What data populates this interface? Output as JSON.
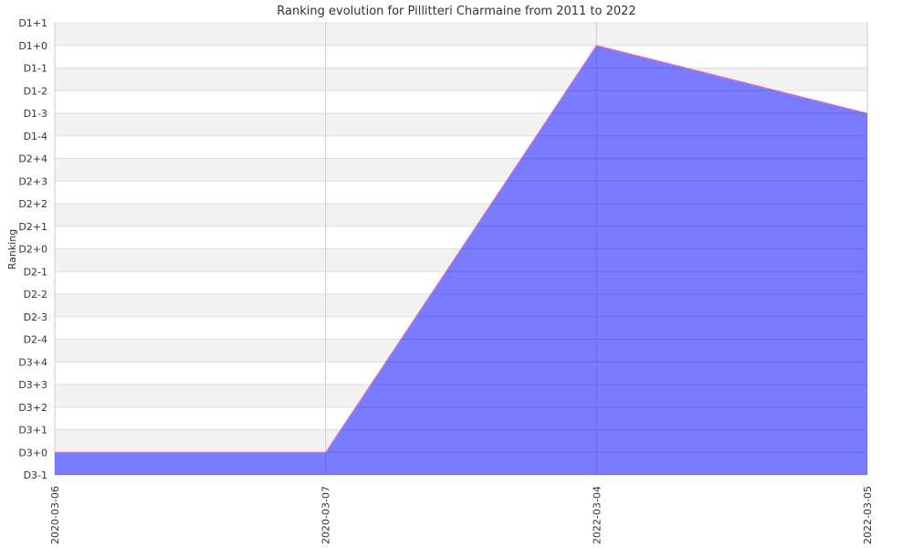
{
  "chart_data": {
    "type": "area",
    "title": "Ranking evolution for Pillitteri Charmaine from 2011 to 2022",
    "xlabel": "",
    "ylabel": "Ranking",
    "x": [
      "2020-03-06",
      "2020-03-07",
      "2022-03-04",
      "2022-03-05"
    ],
    "y_categories": [
      "D3-1",
      "D3+0",
      "D3+1",
      "D3+2",
      "D3+3",
      "D3+4",
      "D2-4",
      "D2-3",
      "D2-2",
      "D2-1",
      "D2+0",
      "D2+1",
      "D2+2",
      "D2+3",
      "D2+4",
      "D1-4",
      "D1-3",
      "D1-2",
      "D1-1",
      "D1+0",
      "D1+1"
    ],
    "series": [
      {
        "values": [
          "D3+0",
          "D3+0",
          "D1+0",
          "D1-3"
        ]
      }
    ],
    "grid": true,
    "legend": "none",
    "colors": {
      "fill": "#7b7bff",
      "line": "#ff7b7b",
      "band_alt": "#f2f2f2",
      "gridline": "#dddddd",
      "vgridline": "#cccccc"
    }
  }
}
